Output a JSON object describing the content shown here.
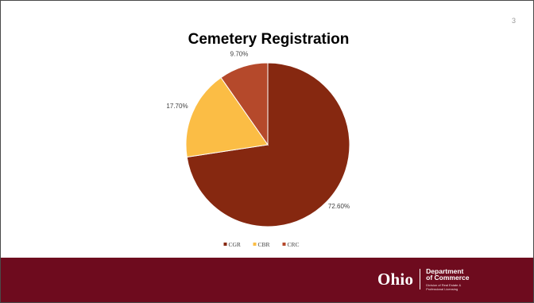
{
  "slide": {
    "number": "3"
  },
  "chart_data": {
    "type": "pie",
    "title": "Cemetery Registration",
    "slices": [
      {
        "label": "CGR",
        "value": 72.6,
        "display": "72.60%",
        "color": "#862810"
      },
      {
        "label": "CBR",
        "value": 17.7,
        "display": "17.70%",
        "color": "#fbbd45"
      },
      {
        "label": "CRC",
        "value": 9.7,
        "display": "9.70%",
        "color": "#b5492b"
      }
    ],
    "legend": {
      "position": "bottom",
      "entries": [
        "CGR",
        "CBR",
        "CRC"
      ]
    },
    "start_angle": "12 o'clock",
    "direction": "clockwise"
  },
  "footer": {
    "background": "#6e0b1e",
    "logo_word": "Ohio",
    "department_line1": "Department",
    "department_line2": "of Commerce",
    "division_line1": "Division of Real Estate &",
    "division_line2": "Professional Licensing"
  }
}
